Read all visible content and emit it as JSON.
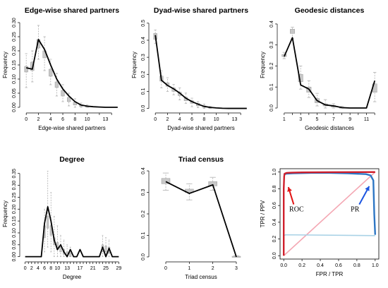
{
  "colors": {
    "observed": "#000000",
    "box_fill": "#c8c8c8",
    "box_stroke": "#9a9a9a",
    "whisker": "#b0b0b0",
    "roc": "#d0202c",
    "roc_random": "#f4a7b3",
    "pr": "#2d76c4",
    "pr_random": "#a9d2e6",
    "arrow_roc": "#e11414",
    "arrow_pr": "#1c55e0"
  },
  "chart_data": [
    {
      "type": "line",
      "title": "Edge-wise shared partners",
      "xlabel": "Edge-wise shared partners",
      "ylabel": "Frequency",
      "xlim": [
        -0.6,
        15.6
      ],
      "ylim": [
        -0.01,
        0.31
      ],
      "xticks": [
        0,
        2,
        4,
        6,
        8,
        10,
        12,
        14
      ],
      "xtick_labels": [
        "0",
        "2",
        "4",
        "6",
        "8",
        "10",
        "13"
      ],
      "xtick_label_positions": [
        0,
        2,
        4,
        6,
        8,
        10,
        13
      ],
      "yticks": [
        0.0,
        0.05,
        0.1,
        0.15,
        0.2,
        0.25,
        0.3
      ],
      "ytick_labels": [
        "0.00",
        "0.05",
        "0.10",
        "0.15",
        "0.20",
        "0.25",
        "0.30"
      ],
      "x": [
        0,
        1,
        2,
        3,
        4,
        5,
        6,
        7,
        8,
        9,
        10,
        11,
        12,
        13,
        14,
        15
      ],
      "observed": [
        0.14,
        0.135,
        0.24,
        0.205,
        0.15,
        0.1,
        0.065,
        0.04,
        0.02,
        0.008,
        0.004,
        0.002,
        0.001,
        0.0,
        0.0,
        0.0
      ],
      "boxes": [
        {
          "x": 0,
          "q1": 0.125,
          "q3": 0.145,
          "lo": 0.07,
          "hi": 0.19
        },
        {
          "x": 1,
          "q1": 0.13,
          "q3": 0.16,
          "lo": 0.09,
          "hi": 0.2
        },
        {
          "x": 2,
          "q1": 0.21,
          "q3": 0.24,
          "lo": 0.17,
          "hi": 0.29
        },
        {
          "x": 3,
          "q1": 0.175,
          "q3": 0.2,
          "lo": 0.13,
          "hi": 0.25
        },
        {
          "x": 4,
          "q1": 0.11,
          "q3": 0.135,
          "lo": 0.08,
          "hi": 0.17
        },
        {
          "x": 5,
          "q1": 0.07,
          "q3": 0.09,
          "lo": 0.04,
          "hi": 0.12
        },
        {
          "x": 6,
          "q1": 0.04,
          "q3": 0.06,
          "lo": 0.02,
          "hi": 0.08
        },
        {
          "x": 7,
          "q1": 0.02,
          "q3": 0.035,
          "lo": 0.005,
          "hi": 0.05
        },
        {
          "x": 8,
          "q1": 0.008,
          "q3": 0.018,
          "lo": 0.0,
          "hi": 0.03
        },
        {
          "x": 9,
          "q1": 0.003,
          "q3": 0.008,
          "lo": 0.0,
          "hi": 0.015
        },
        {
          "x": 10,
          "q1": 0.001,
          "q3": 0.004,
          "lo": 0.0,
          "hi": 0.008
        }
      ],
      "panel": {
        "row": 0,
        "col": 0
      }
    },
    {
      "type": "line",
      "title": "Dyad-wise shared partners",
      "xlabel": "Dyad-wise shared partners",
      "ylabel": "Frequency",
      "xlim": [
        -0.6,
        15.6
      ],
      "ylim": [
        -0.01,
        0.52
      ],
      "xticks": [
        0,
        2,
        4,
        6,
        8,
        10,
        12,
        14
      ],
      "xtick_labels": [
        "0",
        "2",
        "4",
        "6",
        "8",
        "10",
        "13"
      ],
      "xtick_label_positions": [
        0,
        2,
        4,
        6,
        8,
        10,
        13
      ],
      "yticks": [
        0.0,
        0.1,
        0.2,
        0.3,
        0.4,
        0.5
      ],
      "ytick_labels": [
        "0.0",
        "0.1",
        "0.2",
        "0.3",
        "0.4",
        "0.5"
      ],
      "x": [
        0,
        1,
        2,
        3,
        4,
        5,
        6,
        7,
        8,
        9,
        10,
        11,
        12,
        13,
        14,
        15
      ],
      "observed": [
        0.43,
        0.165,
        0.135,
        0.115,
        0.09,
        0.06,
        0.04,
        0.025,
        0.012,
        0.006,
        0.003,
        0.001,
        0.0,
        0.0,
        0.0,
        0.0
      ],
      "boxes": [
        {
          "x": 0,
          "q1": 0.405,
          "q3": 0.44,
          "lo": 0.38,
          "hi": 0.46
        },
        {
          "x": 1,
          "q1": 0.16,
          "q3": 0.19,
          "lo": 0.12,
          "hi": 0.22
        },
        {
          "x": 2,
          "q1": 0.13,
          "q3": 0.15,
          "lo": 0.1,
          "hi": 0.18
        },
        {
          "x": 3,
          "q1": 0.1,
          "q3": 0.12,
          "lo": 0.08,
          "hi": 0.14
        },
        {
          "x": 4,
          "q1": 0.075,
          "q3": 0.095,
          "lo": 0.05,
          "hi": 0.12
        },
        {
          "x": 5,
          "q1": 0.045,
          "q3": 0.065,
          "lo": 0.03,
          "hi": 0.09
        },
        {
          "x": 6,
          "q1": 0.03,
          "q3": 0.045,
          "lo": 0.01,
          "hi": 0.06
        },
        {
          "x": 7,
          "q1": 0.015,
          "q3": 0.03,
          "lo": 0.005,
          "hi": 0.04
        },
        {
          "x": 8,
          "q1": 0.006,
          "q3": 0.015,
          "lo": 0.0,
          "hi": 0.025
        },
        {
          "x": 9,
          "q1": 0.002,
          "q3": 0.008,
          "lo": 0.0,
          "hi": 0.012
        }
      ],
      "panel": {
        "row": 0,
        "col": 1
      }
    },
    {
      "type": "line",
      "title": "Geodesic distances",
      "xlabel": "Geodesic distances",
      "ylabel": "Frequency",
      "xlim": [
        0.5,
        12.5
      ],
      "ylim": [
        -0.01,
        0.42
      ],
      "xticks": [
        1,
        2,
        3,
        4,
        5,
        6,
        7,
        8,
        9,
        10,
        11,
        12
      ],
      "xtick_labels": [
        "1",
        "3",
        "5",
        "7",
        "9",
        "11"
      ],
      "xtick_label_positions": [
        1,
        3,
        5,
        7,
        9,
        11
      ],
      "yticks": [
        0.0,
        0.1,
        0.2,
        0.3,
        0.4
      ],
      "ytick_labels": [
        "0.0",
        "0.1",
        "0.2",
        "0.3",
        "0.4"
      ],
      "x": [
        1,
        2,
        3,
        4,
        5,
        6,
        7,
        8,
        9,
        10,
        11,
        12
      ],
      "observed": [
        0.245,
        0.335,
        0.11,
        0.09,
        0.035,
        0.015,
        0.01,
        0.002,
        0.0,
        0.0,
        0.0,
        0.13
      ],
      "boxes": [
        {
          "x": 1,
          "q1": 0.245,
          "q3": 0.255,
          "lo": 0.235,
          "hi": 0.265
        },
        {
          "x": 2,
          "q1": 0.355,
          "q3": 0.375,
          "lo": 0.33,
          "hi": 0.385
        },
        {
          "x": 3,
          "q1": 0.125,
          "q3": 0.16,
          "lo": 0.09,
          "hi": 0.2
        },
        {
          "x": 4,
          "q1": 0.075,
          "q3": 0.1,
          "lo": 0.05,
          "hi": 0.13
        },
        {
          "x": 5,
          "q1": 0.025,
          "q3": 0.045,
          "lo": 0.01,
          "hi": 0.07
        },
        {
          "x": 6,
          "q1": 0.01,
          "q3": 0.02,
          "lo": 0.0,
          "hi": 0.04
        },
        {
          "x": 7,
          "q1": 0.005,
          "q3": 0.012,
          "lo": 0.0,
          "hi": 0.02
        },
        {
          "x": 8,
          "q1": 0.0,
          "q3": 0.004,
          "lo": 0.0,
          "hi": 0.008
        },
        {
          "x": 12,
          "q1": 0.075,
          "q3": 0.115,
          "lo": 0.03,
          "hi": 0.17
        }
      ],
      "panel": {
        "row": 0,
        "col": 2
      }
    },
    {
      "type": "line",
      "title": "Degree",
      "xlabel": "Degree",
      "ylabel": "Frequency",
      "xlim": [
        -0.8,
        29.8
      ],
      "ylim": [
        -0.01,
        0.37
      ],
      "xticks": [
        0,
        1,
        2,
        3,
        4,
        5,
        6,
        7,
        8,
        9,
        10,
        11,
        12,
        13,
        14,
        15,
        16,
        17,
        18,
        19,
        20,
        21,
        22,
        23,
        24,
        25,
        26,
        27,
        28,
        29
      ],
      "xtick_labels": [
        "0",
        "2",
        "4",
        "6",
        "8",
        "10",
        "13",
        "17",
        "21",
        "25",
        "29"
      ],
      "xtick_label_positions": [
        0,
        2,
        4,
        6,
        8,
        10,
        13,
        17,
        21,
        25,
        29
      ],
      "yticks": [
        0.0,
        0.05,
        0.1,
        0.15,
        0.2,
        0.25,
        0.3,
        0.35
      ],
      "ytick_labels": [
        "0.00",
        "0.05",
        "0.10",
        "0.15",
        "0.20",
        "0.25",
        "0.30",
        "0.35"
      ],
      "x": [
        0,
        1,
        2,
        3,
        4,
        5,
        6,
        7,
        8,
        9,
        10,
        11,
        12,
        13,
        14,
        15,
        16,
        17,
        18,
        19,
        20,
        21,
        22,
        23,
        24,
        25,
        26,
        27,
        28,
        29
      ],
      "observed": [
        0.0,
        0.0,
        0.0,
        0.0,
        0.0,
        0.0,
        0.14,
        0.21,
        0.15,
        0.07,
        0.03,
        0.05,
        0.02,
        0.0,
        0.03,
        0.0,
        0.0,
        0.03,
        0.0,
        0.0,
        0.0,
        0.0,
        0.0,
        0.0,
        0.04,
        0.0,
        0.035,
        0.0,
        0.0,
        0.0
      ],
      "boxes": [
        {
          "x": 6,
          "q1": 0.08,
          "q3": 0.13,
          "lo": 0.02,
          "hi": 0.2
        },
        {
          "x": 7,
          "q1": 0.12,
          "q3": 0.17,
          "lo": 0.04,
          "hi": 0.36
        },
        {
          "x": 8,
          "q1": 0.09,
          "q3": 0.13,
          "lo": 0.02,
          "hi": 0.27
        },
        {
          "x": 9,
          "q1": 0.05,
          "q3": 0.08,
          "lo": 0.0,
          "hi": 0.17
        },
        {
          "x": 10,
          "q1": 0.03,
          "q3": 0.06,
          "lo": 0.0,
          "hi": 0.13
        },
        {
          "x": 11,
          "q1": 0.02,
          "q3": 0.04,
          "lo": 0.0,
          "hi": 0.09
        },
        {
          "x": 12,
          "q1": 0.01,
          "q3": 0.03,
          "lo": 0.0,
          "hi": 0.07
        },
        {
          "x": 13,
          "q1": 0.005,
          "q3": 0.02,
          "lo": 0.0,
          "hi": 0.05
        },
        {
          "x": 14,
          "q1": 0.0,
          "q3": 0.015,
          "lo": 0.0,
          "hi": 0.04
        },
        {
          "x": 24,
          "q1": 0.02,
          "q3": 0.05,
          "lo": 0.0,
          "hi": 0.09
        },
        {
          "x": 25,
          "q1": 0.02,
          "q3": 0.045,
          "lo": 0.0,
          "hi": 0.08
        },
        {
          "x": 26,
          "q1": 0.015,
          "q3": 0.04,
          "lo": 0.0,
          "hi": 0.07
        }
      ],
      "panel": {
        "row": 1,
        "col": 0
      }
    },
    {
      "type": "line",
      "title": "Triad census",
      "xlabel": "Triad census",
      "ylabel": "",
      "xlim": [
        -0.6,
        3.6
      ],
      "ylim": [
        -0.01,
        0.41
      ],
      "xticks": [
        0,
        1,
        2,
        3
      ],
      "xtick_labels": [
        "0",
        "1",
        "2",
        "3"
      ],
      "xtick_label_positions": [
        0,
        1,
        2,
        3
      ],
      "yticks": [
        0.0,
        0.1,
        0.2,
        0.3,
        0.4
      ],
      "ytick_labels": [
        "0.0",
        "0.1",
        "0.2",
        "0.3",
        "0.4"
      ],
      "x": [
        0,
        1,
        2,
        3
      ],
      "observed": [
        0.35,
        0.295,
        0.335,
        0.0
      ],
      "boxes": [
        {
          "x": 0,
          "q1": 0.34,
          "q3": 0.365,
          "lo": 0.31,
          "hi": 0.39
        },
        {
          "x": 1,
          "q1": 0.3,
          "q3": 0.315,
          "lo": 0.265,
          "hi": 0.34
        },
        {
          "x": 2,
          "q1": 0.33,
          "q3": 0.35,
          "lo": 0.31,
          "hi": 0.37
        },
        {
          "x": 3,
          "q1": 0.0,
          "q3": 0.003,
          "lo": 0.0,
          "hi": 0.005
        }
      ],
      "panel": {
        "row": 1,
        "col": 1
      }
    },
    {
      "type": "line",
      "title": "",
      "xlabel": "FPR / TPR",
      "ylabel": "TPR / PPV",
      "xlim": [
        -0.04,
        1.04
      ],
      "ylim": [
        -0.04,
        1.04
      ],
      "xticks": [
        0.0,
        0.2,
        0.4,
        0.6,
        0.8,
        1.0
      ],
      "xtick_labels": [
        "0.0",
        "0.2",
        "0.4",
        "0.6",
        "0.8",
        "1.0"
      ],
      "xtick_label_positions": [
        0.0,
        0.2,
        0.4,
        0.6,
        0.8,
        1.0
      ],
      "yticks": [
        0.0,
        0.2,
        0.4,
        0.6,
        0.8,
        1.0
      ],
      "ytick_labels": [
        "0.0",
        "0.2",
        "0.4",
        "0.6",
        "0.8",
        "1.0"
      ],
      "series": [
        {
          "name": "ROC",
          "x": [
            0.0,
            0.0,
            0.005,
            0.01,
            0.03,
            0.08,
            0.2,
            0.5,
            0.8,
            1.0
          ],
          "y": [
            0.0,
            0.8,
            0.95,
            0.98,
            0.99,
            0.993,
            0.996,
            0.998,
            0.999,
            1.0
          ]
        },
        {
          "x": [
            0.0,
            1.0
          ],
          "y": [
            0.0,
            1.0
          ]
        },
        {
          "name": "PR",
          "x": [
            0.0,
            0.01,
            0.03,
            0.1,
            0.3,
            0.5,
            0.7,
            0.9,
            0.95,
            0.98,
            0.99,
            1.0
          ],
          "y": [
            0.97,
            0.975,
            0.98,
            0.985,
            0.99,
            0.99,
            0.985,
            0.975,
            0.96,
            0.9,
            0.5,
            0.25
          ]
        },
        {
          "x": [
            0.0,
            0.02,
            1.0
          ],
          "y": [
            0.24,
            0.25,
            0.24
          ]
        }
      ],
      "annotations": [
        {
          "text": "ROC",
          "x": 0.14,
          "y": 0.63
        },
        {
          "text": "PR",
          "x": 0.78,
          "y": 0.63
        }
      ],
      "panel": {
        "row": 1,
        "col": 2
      }
    }
  ]
}
